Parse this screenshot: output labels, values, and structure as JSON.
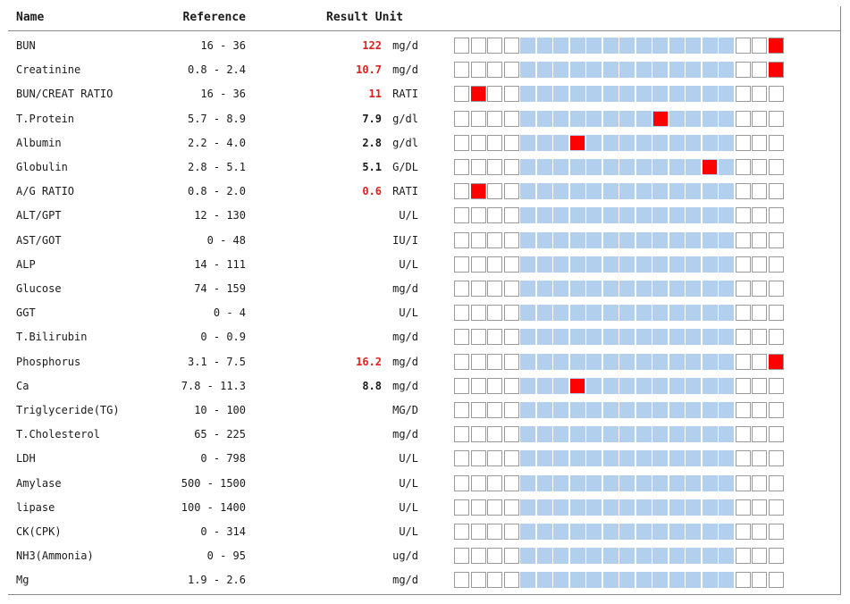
{
  "headers": {
    "name": "Name",
    "reference": "Reference",
    "result": "Result",
    "unit": "Unit"
  },
  "colors": {
    "abnormal_text": "#e02020",
    "normal_band": "#b3cfee",
    "marker": "#ff0000"
  },
  "gauge": {
    "segments": 20,
    "normal_band_from_segment": 4,
    "normal_band_to_segment": 16
  },
  "rows": [
    {
      "name": "BUN",
      "reference": "16 - 36",
      "value": "122",
      "unit": "mg/d",
      "abnormal": true,
      "marker_segment": 19
    },
    {
      "name": "Creatinine",
      "reference": "0.8 - 2.4",
      "value": "10.7",
      "unit": "mg/d",
      "abnormal": true,
      "marker_segment": 19
    },
    {
      "name": "BUN/CREAT RATIO",
      "reference": "16 - 36",
      "value": "11",
      "unit": "RATI",
      "abnormal": true,
      "marker_segment": 1
    },
    {
      "name": "T.Protein",
      "reference": "5.7 - 8.9",
      "value": "7.9",
      "unit": "g/dl",
      "abnormal": false,
      "marker_segment": 12
    },
    {
      "name": "Albumin",
      "reference": "2.2 - 4.0",
      "value": "2.8",
      "unit": "g/dl",
      "abnormal": false,
      "marker_segment": 7
    },
    {
      "name": "Globulin",
      "reference": "2.8 - 5.1",
      "value": "5.1",
      "unit": "G/DL",
      "abnormal": false,
      "marker_segment": 15
    },
    {
      "name": "A/G RATIO",
      "reference": "0.8 - 2.0",
      "value": "0.6",
      "unit": "RATI",
      "abnormal": true,
      "marker_segment": 1
    },
    {
      "name": "ALT/GPT",
      "reference": "12 - 130",
      "value": "",
      "unit": "U/L",
      "abnormal": false,
      "marker_segment": null
    },
    {
      "name": "AST/GOT",
      "reference": "0 - 48",
      "value": "",
      "unit": "IU/I",
      "abnormal": false,
      "marker_segment": null
    },
    {
      "name": "ALP",
      "reference": "14 - 111",
      "value": "",
      "unit": "U/L",
      "abnormal": false,
      "marker_segment": null
    },
    {
      "name": "Glucose",
      "reference": "74 - 159",
      "value": "",
      "unit": "mg/d",
      "abnormal": false,
      "marker_segment": null
    },
    {
      "name": "GGT",
      "reference": "0 - 4",
      "value": "",
      "unit": "U/L",
      "abnormal": false,
      "marker_segment": null
    },
    {
      "name": "T.Bilirubin",
      "reference": "0 - 0.9",
      "value": "",
      "unit": "mg/d",
      "abnormal": false,
      "marker_segment": null
    },
    {
      "name": "Phosphorus",
      "reference": "3.1 - 7.5",
      "value": "16.2",
      "unit": "mg/d",
      "abnormal": true,
      "marker_segment": 19
    },
    {
      "name": "Ca",
      "reference": "7.8 - 11.3",
      "value": "8.8",
      "unit": "mg/d",
      "abnormal": false,
      "marker_segment": 7
    },
    {
      "name": "Triglyceride(TG)",
      "reference": "10 - 100",
      "value": "",
      "unit": "MG/D",
      "abnormal": false,
      "marker_segment": null
    },
    {
      "name": "T.Cholesterol",
      "reference": "65 - 225",
      "value": "",
      "unit": "mg/d",
      "abnormal": false,
      "marker_segment": null
    },
    {
      "name": "LDH",
      "reference": "0 - 798",
      "value": "",
      "unit": "U/L",
      "abnormal": false,
      "marker_segment": null
    },
    {
      "name": "Amylase",
      "reference": "500 - 1500",
      "value": "",
      "unit": "U/L",
      "abnormal": false,
      "marker_segment": null
    },
    {
      "name": "lipase",
      "reference": "100 - 1400",
      "value": "",
      "unit": "U/L",
      "abnormal": false,
      "marker_segment": null
    },
    {
      "name": "CK(CPK)",
      "reference": "0 - 314",
      "value": "",
      "unit": "U/L",
      "abnormal": false,
      "marker_segment": null
    },
    {
      "name": "NH3(Ammonia)",
      "reference": "0 - 95",
      "value": "",
      "unit": "ug/d",
      "abnormal": false,
      "marker_segment": null
    },
    {
      "name": "Mg",
      "reference": "1.9 - 2.6",
      "value": "",
      "unit": "mg/d",
      "abnormal": false,
      "marker_segment": null
    }
  ]
}
